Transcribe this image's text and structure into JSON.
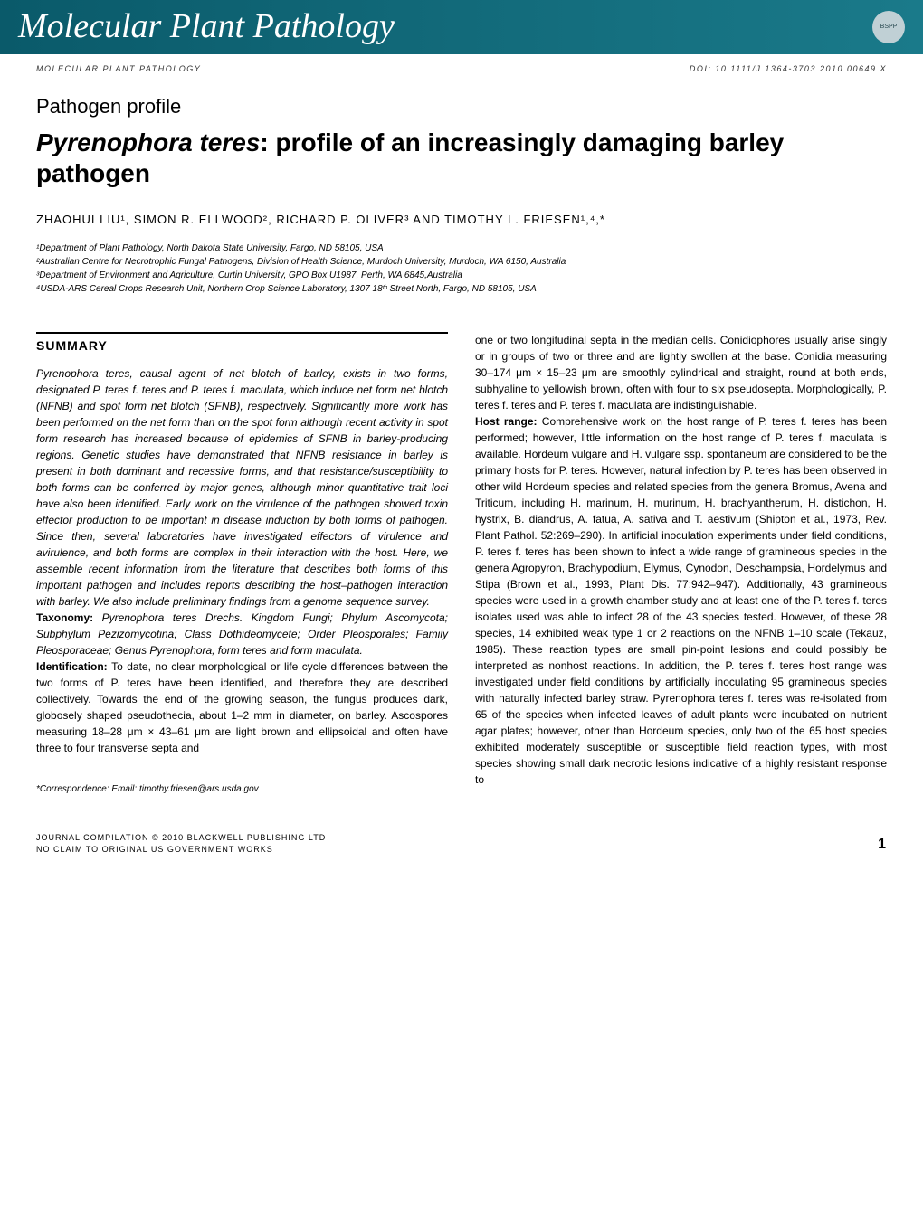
{
  "header": {
    "journal_name": "Molecular Plant Pathology",
    "bspp_label": "BSPP",
    "subheader_left": "MOLECULAR PLANT PATHOLOGY",
    "subheader_right": "DOI: 10.1111/J.1364-3703.2010.00649.X"
  },
  "article": {
    "type": "Pathogen profile",
    "title_species": "Pyrenophora teres",
    "title_rest": ": profile of an increasingly damaging barley pathogen",
    "authors": "ZHAOHUI LIU¹, SIMON R. ELLWOOD², RICHARD P. OLIVER³ AND TIMOTHY L. FRIESEN¹,⁴,*",
    "affiliations": {
      "a1": "¹Department of Plant Pathology, North Dakota State University, Fargo, ND 58105, USA",
      "a2": "²Australian Centre for Necrotrophic Fungal Pathogens, Division of Health Science, Murdoch University, Murdoch, WA 6150, Australia",
      "a3": "³Department of Environment and Agriculture, Curtin University, GPO Box U1987, Perth, WA 6845,Australia",
      "a4": "⁴USDA-ARS Cereal Crops Research Unit, Northern Crop Science Laboratory, 1307 18ᵗʰ Street North, Fargo, ND 58105, USA"
    }
  },
  "summary": {
    "heading": "SUMMARY",
    "col1_p1": "Pyrenophora teres, causal agent of net blotch of barley, exists in two forms, designated P. teres f. teres and P. teres f. maculata, which induce net form net blotch (NFNB) and spot form net blotch (SFNB), respectively. Significantly more work has been performed on the net form than on the spot form although recent activity in spot form research has increased because of epidemics of SFNB in barley-producing regions. Genetic studies have demonstrated that NFNB resistance in barley is present in both dominant and recessive forms, and that resistance/susceptibility to both forms can be conferred by major genes, although minor quantitative trait loci have also been identified. Early work on the virulence of the pathogen showed toxin effector production to be important in disease induction by both forms of pathogen. Since then, several laboratories have investigated effectors of virulence and avirulence, and both forms are complex in their interaction with the host. Here, we assemble recent information from the literature that describes both forms of this important pathogen and includes reports describing the host–pathogen interaction with barley. We also include preliminary findings from a genome sequence survey.",
    "taxonomy_label": "Taxonomy: ",
    "taxonomy_text": "Pyrenophora teres Drechs. Kingdom Fungi; Phylum Ascomycota; Subphylum Pezizomycotina; Class Dothideomycete; Order Pleosporales; Family Pleosporaceae; Genus Pyrenophora, form teres and form maculata.",
    "identification_label": "Identification: ",
    "identification_text": "To date, no clear morphological or life cycle differences between the two forms of P. teres have been identified, and therefore they are described collectively. Towards the end of the growing season, the fungus produces dark, globosely shaped pseudothecia, about 1–2 mm in diameter, on barley. Ascospores measuring 18–28 μm × 43–61 μm are light brown and ellipsoidal and often have three to four transverse septa and",
    "col2_p1": "one or two longitudinal septa in the median cells. Conidiophores usually arise singly or in groups of two or three and are lightly swollen at the base. Conidia measuring 30–174 μm × 15–23 μm are smoothly cylindrical and straight, round at both ends, subhyaline to yellowish brown, often with four to six pseudosepta. Morphologically, P. teres f. teres and P. teres f. maculata are indistinguishable.",
    "hostrange_label": "Host range: ",
    "hostrange_text": "Comprehensive work on the host range of P. teres f. teres has been performed; however, little information on the host range of P. teres f. maculata is available. Hordeum vulgare and H. vulgare ssp. spontaneum are considered to be the primary hosts for P. teres. However, natural infection by P. teres has been observed in other wild Hordeum species and related species from the genera Bromus, Avena and Triticum, including H. marinum, H. murinum, H. brachyantherum, H. distichon, H. hystrix, B. diandrus, A. fatua, A. sativa and T. aestivum (Shipton et al., 1973, Rev. Plant Pathol. 52:269–290). In artificial inoculation experiments under field conditions, P. teres f. teres has been shown to infect a wide range of gramineous species in the genera Agropyron, Brachypodium, Elymus, Cynodon, Deschampsia, Hordelymus and Stipa (Brown et al., 1993, Plant Dis. 77:942–947). Additionally, 43 gramineous species were used in a growth chamber study and at least one of the P. teres f. teres isolates used was able to infect 28 of the 43 species tested. However, of these 28 species, 14 exhibited weak type 1 or 2 reactions on the NFNB 1–10 scale (Tekauz, 1985). These reaction types are small pin-point lesions and could possibly be interpreted as nonhost reactions. In addition, the P. teres f. teres host range was investigated under field conditions by artificially inoculating 95 gramineous species with naturally infected barley straw. Pyrenophora teres f. teres was re-isolated from 65 of the species when infected leaves of adult plants were incubated on nutrient agar plates; however, other than Hordeum species, only two of the 65 host species exhibited moderately susceptible or susceptible field reaction types, with most species showing small dark necrotic lesions indicative of a highly resistant response to"
  },
  "correspondence": "*Correspondence: Email: timothy.friesen@ars.usda.gov",
  "footer": {
    "line1": "JOURNAL COMPILATION © 2010 BLACKWELL PUBLISHING LTD",
    "line2": "NO CLAIM TO ORIGINAL US GOVERNMENT WORKS",
    "page": "1"
  },
  "colors": {
    "banner_bg_start": "#0a5a6a",
    "banner_bg_end": "#1a7a8a",
    "text": "#000000",
    "bg": "#ffffff"
  }
}
